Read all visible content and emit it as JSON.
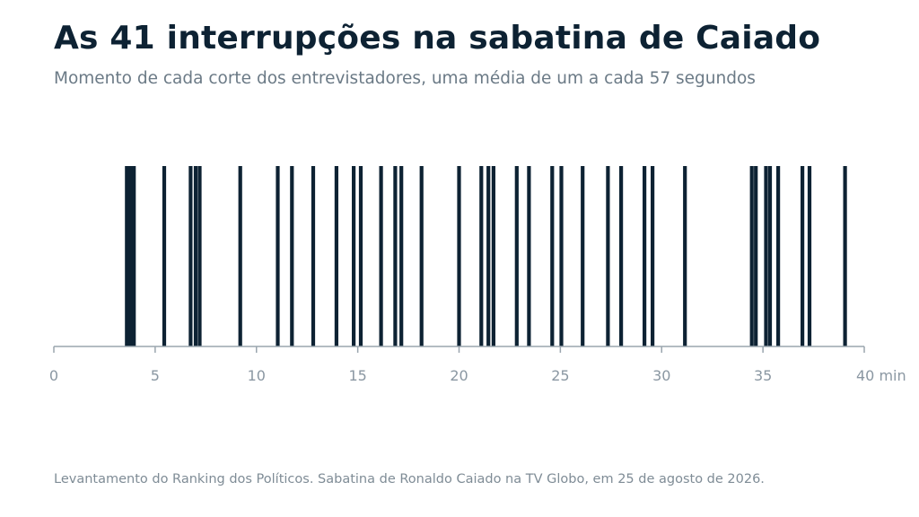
{
  "title": "As 41 interrupções na sabatina de Caiado",
  "subtitle": "Momento de cada corte dos entrevistadores, uma média de um a cada 57 segundos",
  "source": "Levantamento do Ranking dos Políticos. Sabatina de Ronaldo Caiado na TV Globo, em 25 de agosto de 2026.",
  "colors": {
    "bar": "#0d2233",
    "axis": "#9aa5ae",
    "tick_label": "#8a97a2"
  },
  "chart_data": {
    "type": "bar",
    "xlim": [
      0,
      40
    ],
    "unit_label": "min",
    "ticks": [
      0,
      5,
      10,
      15,
      20,
      25,
      30,
      35,
      40
    ],
    "tick_labels": [
      "0",
      "5",
      "10",
      "15",
      "20",
      "25",
      "30",
      "35",
      "40 min"
    ],
    "interruptions_min": [
      3.75,
      3.95,
      5.45,
      6.75,
      7.0,
      7.2,
      9.2,
      11.05,
      11.75,
      12.8,
      13.95,
      14.8,
      15.15,
      16.15,
      16.85,
      17.15,
      18.15,
      20.0,
      21.1,
      21.45,
      21.7,
      22.85,
      23.45,
      24.6,
      25.05,
      26.1,
      27.35,
      28.0,
      29.15,
      29.55,
      31.15,
      34.45,
      34.65,
      35.15,
      35.35,
      35.75,
      36.95,
      37.3,
      39.05,
      3.6,
      3.85
    ],
    "grid": false
  }
}
